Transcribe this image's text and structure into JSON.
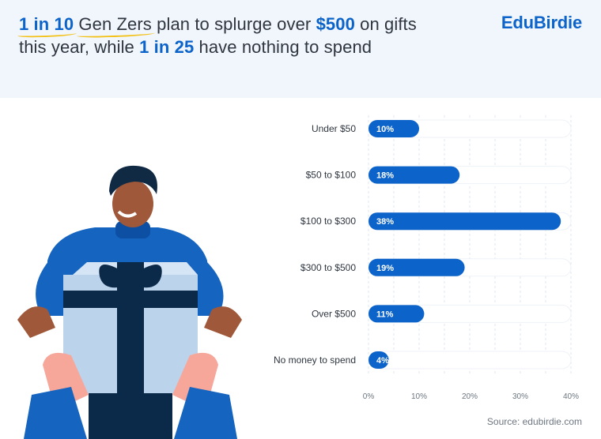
{
  "header": {
    "headline_parts": [
      {
        "text": "1 in 10",
        "style": "hl-u"
      },
      {
        "text": " ",
        "style": "plain"
      },
      {
        "text": "Gen Zers",
        "style": "u"
      },
      {
        "text": " plan to splurge over ",
        "style": "plain"
      },
      {
        "text": "$500",
        "style": "hl"
      },
      {
        "text": " on gifts this year, while ",
        "style": "plain"
      },
      {
        "text": "1 in 25",
        "style": "hl"
      },
      {
        "text": " have nothing to spend",
        "style": "plain"
      }
    ],
    "brand": "EduBirdie"
  },
  "chart_data": {
    "type": "bar",
    "orientation": "horizontal",
    "categories": [
      "Under $50",
      "$50 to $100",
      "$100 to $300",
      "$300 to $500",
      "Over $500",
      "No money to spend"
    ],
    "values": [
      10,
      18,
      38,
      19,
      11,
      4
    ],
    "data_labels": [
      "10%",
      "18%",
      "38%",
      "19%",
      "11%",
      "4%"
    ],
    "xlim": [
      0,
      40
    ],
    "x_ticks": [
      0,
      10,
      20,
      30,
      40
    ],
    "x_tick_labels": [
      "0%",
      "10%",
      "20%",
      "30%",
      "40%"
    ],
    "grid": true
  },
  "footer": {
    "source": "Source: edubirdie.com"
  },
  "colors": {
    "accent": "#0c63c9",
    "bar_track": "#ffffff",
    "grid": "#dfe6ee",
    "text": "#2f3640",
    "header_bg": "#f1f6fc"
  },
  "illustration": {
    "description_icon": "person-holding-gift-icon"
  }
}
